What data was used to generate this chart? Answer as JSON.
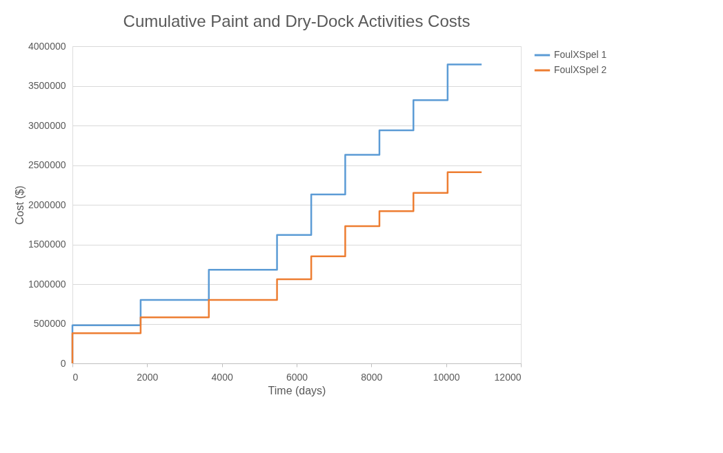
{
  "chart_data": {
    "type": "step",
    "title": "Cumulative Paint and Dry-Dock Activities Costs",
    "xlabel": "Time (days)",
    "ylabel": "Cost ($)",
    "x": [
      0,
      0,
      1825,
      3650,
      5475,
      6390,
      7300,
      8215,
      9125,
      10040,
      10950
    ],
    "series": [
      {
        "name": "FoulXSpel 1",
        "color": "#5b9bd5",
        "values": [
          0,
          480000,
          800000,
          1180000,
          1620000,
          2130000,
          2630000,
          2940000,
          3320000,
          3770000,
          3770000
        ]
      },
      {
        "name": "FoulXSpel 2",
        "color": "#ed7d31",
        "values": [
          0,
          380000,
          580000,
          800000,
          1060000,
          1350000,
          1730000,
          1920000,
          2150000,
          2410000,
          2410000
        ]
      }
    ],
    "xlim": [
      0,
      12000
    ],
    "xticks": [
      0,
      2000,
      4000,
      6000,
      8000,
      10000,
      12000
    ],
    "ylim": [
      0,
      4000000
    ],
    "yticks": [
      0,
      500000,
      1000000,
      1500000,
      2000000,
      2500000,
      3000000,
      3500000,
      4000000
    ],
    "grid": "y",
    "legend": "right",
    "line_style": "solid",
    "marker": "none"
  }
}
